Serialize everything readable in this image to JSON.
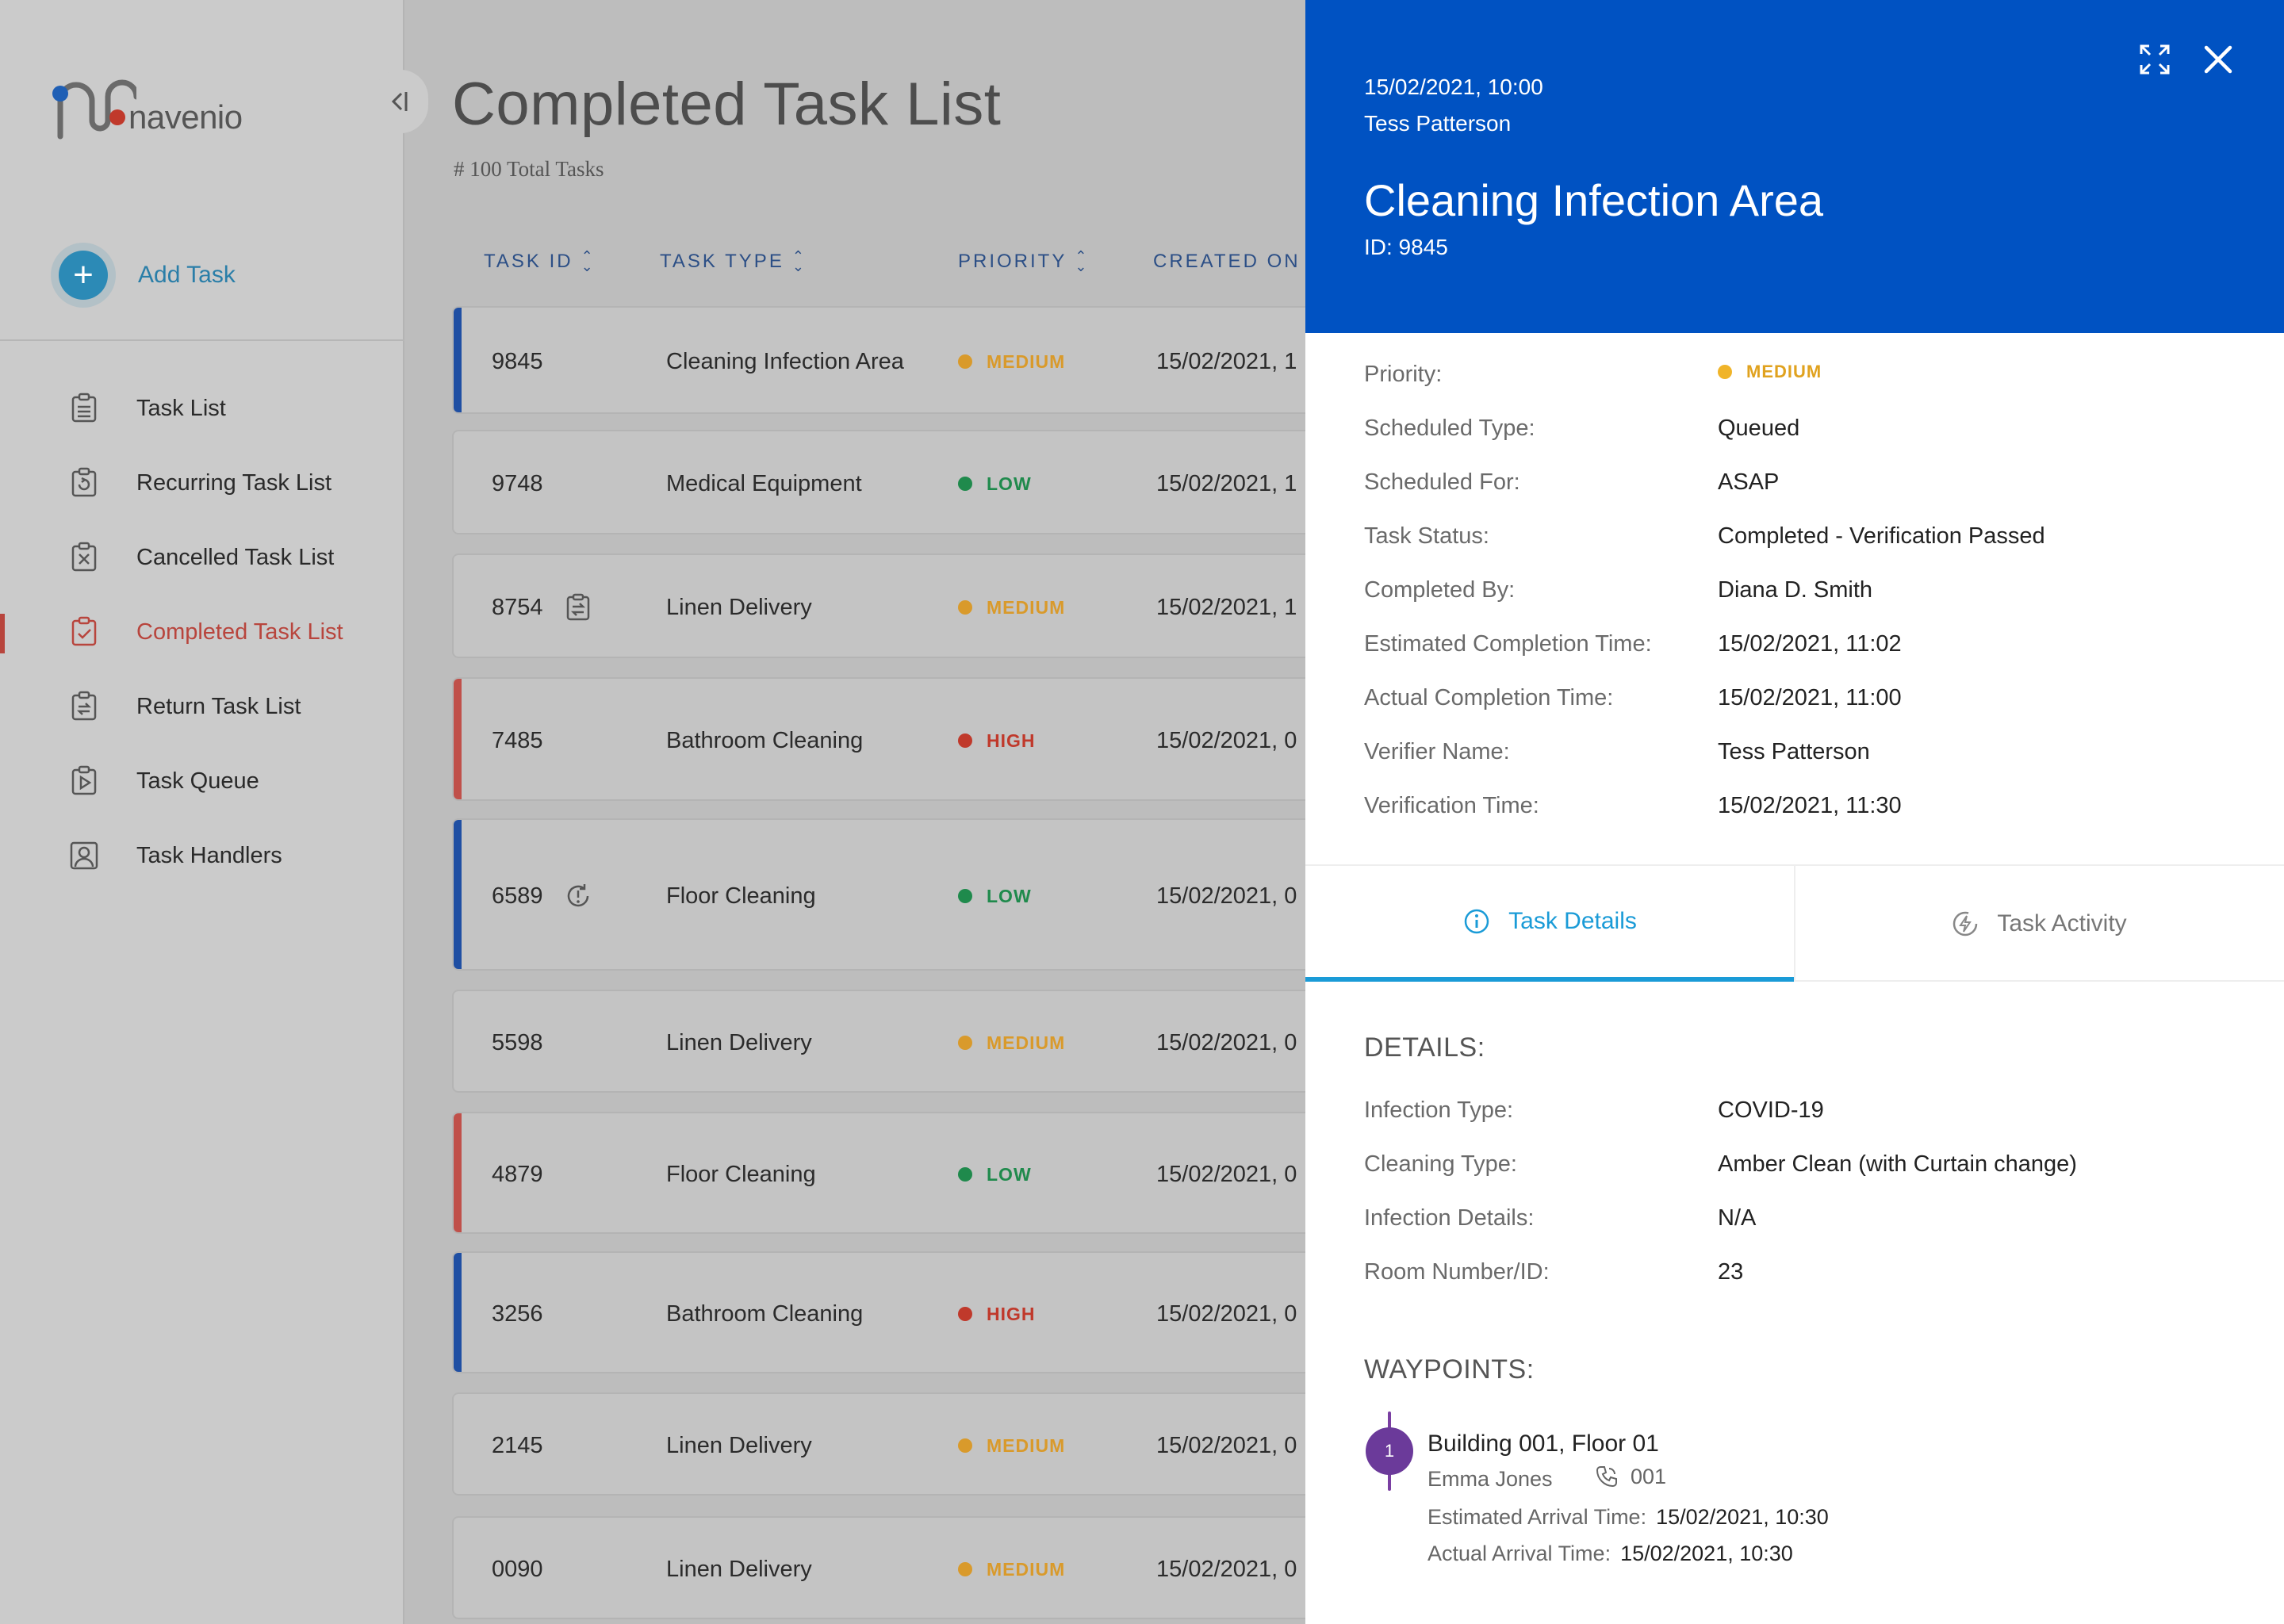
{
  "brand": {
    "name": "navenio"
  },
  "sidebar": {
    "add_task_label": "Add Task",
    "items": [
      {
        "label": "Task List",
        "icon": "task-list-icon"
      },
      {
        "label": "Recurring Task List",
        "icon": "recurring-icon"
      },
      {
        "label": "Cancelled Task List",
        "icon": "cancelled-icon"
      },
      {
        "label": "Completed Task List",
        "icon": "completed-icon"
      },
      {
        "label": "Return Task List",
        "icon": "return-icon"
      },
      {
        "label": "Task Queue",
        "icon": "queue-icon"
      },
      {
        "label": "Task Handlers",
        "icon": "handlers-icon"
      }
    ],
    "active_item": "Completed Task List"
  },
  "main": {
    "title": "Completed Task List",
    "subtitle": "# 100 Total Tasks",
    "columns": [
      "TASK ID",
      "TASK TYPE",
      "PRIORITY",
      "CREATED ON"
    ],
    "rows": [
      {
        "id": "9845",
        "type": "Cleaning Infection Area",
        "priority": "MEDIUM",
        "created": "15/02/2021, 1",
        "accent": "#1f4fa3",
        "icon": ""
      },
      {
        "id": "9748",
        "type": "Medical Equipment",
        "priority": "LOW",
        "created": "15/02/2021, 1",
        "accent": "",
        "icon": ""
      },
      {
        "id": "8754",
        "type": "Linen Delivery",
        "priority": "MEDIUM",
        "created": "15/02/2021, 1",
        "accent": "",
        "icon": "return-task-icon"
      },
      {
        "id": "7485",
        "type": "Bathroom Cleaning",
        "priority": "HIGH",
        "created": "15/02/2021, 0",
        "accent": "#c0504a",
        "icon": ""
      },
      {
        "id": "6589",
        "type": "Floor Cleaning",
        "priority": "LOW",
        "created": "15/02/2021, 0",
        "accent": "#1f4fa3",
        "icon": "recurring-task-icon"
      },
      {
        "id": "5598",
        "type": "Linen Delivery",
        "priority": "MEDIUM",
        "created": "15/02/2021, 0",
        "accent": "",
        "icon": ""
      },
      {
        "id": "4879",
        "type": "Floor Cleaning",
        "priority": "LOW",
        "created": "15/02/2021, 0",
        "accent": "#c0504a",
        "icon": ""
      },
      {
        "id": "3256",
        "type": "Bathroom Cleaning",
        "priority": "HIGH",
        "created": "15/02/2021, 0",
        "accent": "#1f4fa3",
        "icon": ""
      },
      {
        "id": "2145",
        "type": "Linen Delivery",
        "priority": "MEDIUM",
        "created": "15/02/2021, 0",
        "accent": "",
        "icon": ""
      },
      {
        "id": "0090",
        "type": "Linen Delivery",
        "priority": "MEDIUM",
        "created": "15/02/2021, 0",
        "accent": "",
        "icon": ""
      }
    ]
  },
  "priority_colors": {
    "MEDIUM": "#d99a2b",
    "LOW": "#1f8a4c",
    "HIGH": "#c0392b"
  },
  "panel": {
    "datetime": "15/02/2021, 10:00",
    "user": "Tess Patterson",
    "title": "Cleaning Infection Area",
    "id_label": "ID: 9845",
    "info": [
      {
        "k": "Priority:",
        "v": "MEDIUM"
      },
      {
        "k": "Scheduled Type:",
        "v": "Queued"
      },
      {
        "k": "Scheduled For:",
        "v": "ASAP"
      },
      {
        "k": "Task Status:",
        "v": "Completed - Verification Passed"
      },
      {
        "k": "Completed By:",
        "v": "Diana D. Smith"
      },
      {
        "k": "Estimated Completion Time:",
        "v": "15/02/2021, 11:02"
      },
      {
        "k": "Actual Completion Time:",
        "v": "15/02/2021,  11:00"
      },
      {
        "k": "Verifier Name:",
        "v": "Tess Patterson"
      },
      {
        "k": "Verification Time:",
        "v": "15/02/2021, 11:30"
      }
    ],
    "tabs": [
      {
        "label": "Task Details",
        "icon": "info-icon"
      },
      {
        "label": "Task Activity",
        "icon": "activity-icon"
      }
    ],
    "details_title": "DETAILS:",
    "details": [
      {
        "k": "Infection Type:",
        "v": "COVID-19"
      },
      {
        "k": "Cleaning Type:",
        "v": "Amber Clean (with Curtain change)"
      },
      {
        "k": "Infection Details:",
        "v": "N/A"
      },
      {
        "k": "Room Number/ID:",
        "v": "23"
      }
    ],
    "waypoints_title": "WAYPOINTS:",
    "waypoint": {
      "number": "1",
      "place": "Building 001, Floor 01",
      "person": "Emma Jones",
      "phone": "001",
      "eta_label": "Estimated Arrival Time:",
      "eta": "15/02/2021,  10:30",
      "ata_label": "Actual Arrival Time:",
      "ata": "15/02/2021, 10:30"
    }
  }
}
